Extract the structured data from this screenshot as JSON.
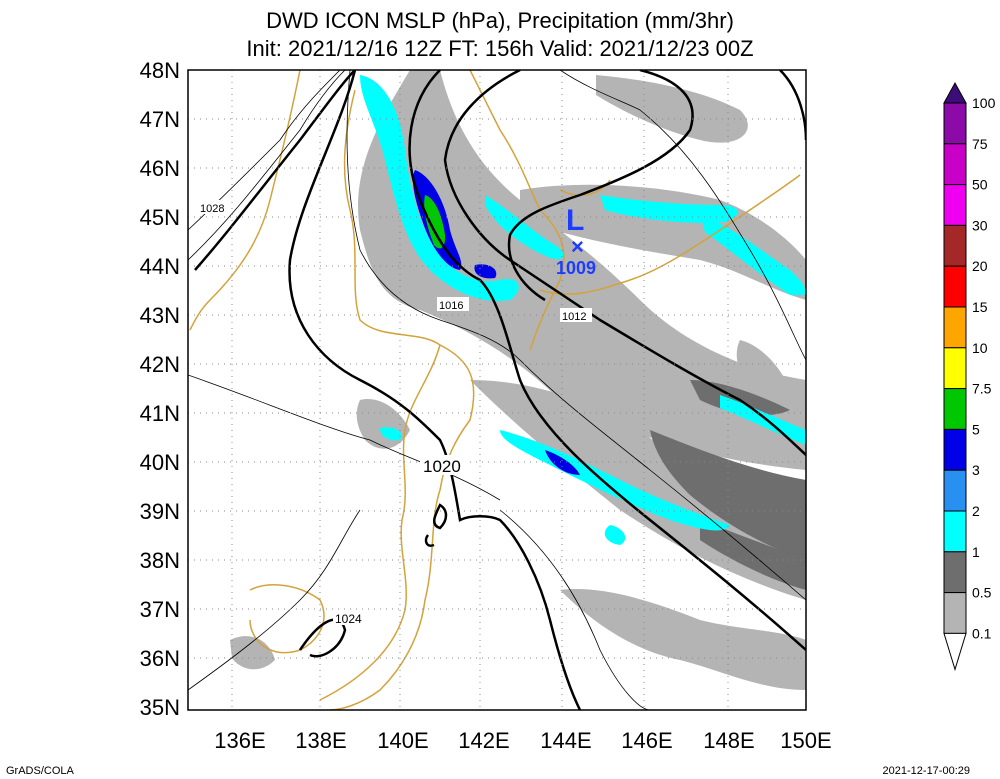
{
  "title_line1": "DWD ICON MSLP (hPa), Precipitation (mm/3hr)",
  "title_line2": "Init: 2021/12/16 12Z  FT: 156h  Valid: 2021/12/23 00Z",
  "lat_labels": [
    "48N",
    "47N",
    "46N",
    "45N",
    "44N",
    "43N",
    "42N",
    "41N",
    "40N",
    "39N",
    "38N",
    "37N",
    "36N",
    "35N"
  ],
  "lon_labels": [
    "136E",
    "138E",
    "140E",
    "142E",
    "144E",
    "146E",
    "148E",
    "150E"
  ],
  "isobar_labels": [
    "1028",
    "1016",
    "1012",
    "1020",
    "1024"
  ],
  "low_center": {
    "symbol": "L",
    "marker": "×",
    "pressure": "1009"
  },
  "colorbar": {
    "levels": [
      "100",
      "75",
      "50",
      "30",
      "20",
      "15",
      "10",
      "7.5",
      "5",
      "3",
      "2",
      "1",
      "0.5",
      "0.1"
    ],
    "colors": [
      "#3c0c78",
      "#8c0aa8",
      "#c800c8",
      "#f000f0",
      "#a42828",
      "#ff0000",
      "#ffa500",
      "#ffff00",
      "#00c800",
      "#0000e6",
      "#2890f0",
      "#00ffff",
      "#6e6e6e",
      "#b4b4b4"
    ]
  },
  "footer_left": "GrADS/COLA",
  "footer_right": "2021-12-17-00:29",
  "colors": {
    "coast": "#d4a23a",
    "low": "#1e3cff",
    "frame": "#000000"
  }
}
